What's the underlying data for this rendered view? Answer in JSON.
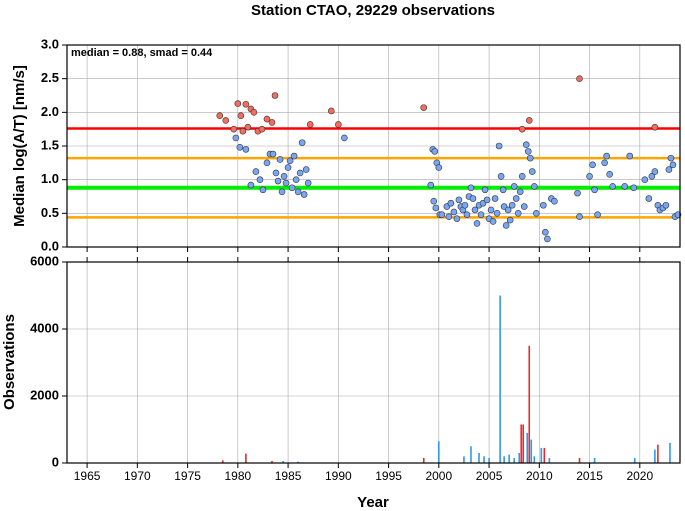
{
  "chart_data": [
    {
      "type": "scatter",
      "title": "Station CTAO, 29229 observations",
      "ylabel": "Median log(A/T) [nm/s]",
      "annotation": "median = 0.88, smad = 0.44",
      "xlim": [
        1963,
        2024
      ],
      "xticks": [
        1965,
        1970,
        1975,
        1980,
        1985,
        1990,
        1995,
        2000,
        2005,
        2010,
        2015,
        2020
      ],
      "ylim": [
        0,
        3
      ],
      "yticks": [
        {
          "value": 0,
          "label": "0.0"
        },
        0.5,
        {
          "value": 1,
          "label": "1.0"
        },
        1.5,
        {
          "value": 2,
          "label": "2.0"
        },
        2.5,
        {
          "value": 3,
          "label": "3.0"
        }
      ],
      "grid": true,
      "hlines": [
        {
          "value": 1.76,
          "color": "#ff0000"
        },
        {
          "value": 1.32,
          "color": "#ffa500"
        },
        {
          "value": 0.88,
          "color": "#00ee00"
        },
        {
          "value": 0.44,
          "color": "#ffa500"
        }
      ],
      "series": [
        {
          "color": "#77a6f5",
          "x": [
            1979.8,
            1980.2,
            1980.8,
            1981.3,
            1981.8,
            1982.2,
            1982.5,
            1982.9,
            1983.2,
            1983.5,
            1983.8,
            1984.0,
            1984.2,
            1984.4,
            1984.6,
            1984.8,
            1985.0,
            1985.2,
            1985.4,
            1985.6,
            1985.8,
            1986.0,
            1986.2,
            1986.4,
            1986.6,
            1986.8,
            1987.0,
            1990.6,
            1999.2,
            1999.4,
            1999.6,
            1999.8,
            2000.0,
            1999.5,
            1999.7,
            2000.1,
            2000.3,
            2000.8,
            2001.0,
            2001.2,
            2001.5,
            2001.8,
            2002.0,
            2002.2,
            2002.4,
            2002.6,
            2002.8,
            2003.0,
            2003.2,
            2003.4,
            2003.6,
            2003.8,
            2004.0,
            2004.2,
            2004.4,
            2004.6,
            2004.8,
            2005.0,
            2005.2,
            2005.4,
            2005.6,
            2005.8,
            2006.0,
            2006.2,
            2006.4,
            2006.5,
            2006.7,
            2006.9,
            2007.1,
            2007.3,
            2007.5,
            2007.7,
            2007.9,
            2008.1,
            2008.3,
            2008.5,
            2008.7,
            2008.9,
            2009.1,
            2009.3,
            2009.5,
            2009.7,
            2010.4,
            2010.6,
            2010.8,
            2011.2,
            2011.5,
            2013.8,
            2014.0,
            2015.0,
            2015.3,
            2015.5,
            2015.8,
            2016.5,
            2016.7,
            2017.0,
            2017.3,
            2018.5,
            2019.0,
            2019.4,
            2020.5,
            2020.9,
            2021.2,
            2021.5,
            2021.8,
            2022.0,
            2022.3,
            2022.6,
            2022.9,
            2023.1,
            2023.3,
            2023.5,
            2023.8
          ],
          "values": [
            1.62,
            1.48,
            1.45,
            0.92,
            1.12,
            1.0,
            0.85,
            1.25,
            1.38,
            1.38,
            1.1,
            0.98,
            1.3,
            0.82,
            1.05,
            0.95,
            1.18,
            1.28,
            0.88,
            1.35,
            1.0,
            0.82,
            1.1,
            1.55,
            0.78,
            1.15,
            0.95,
            1.62,
            0.92,
            1.45,
            1.42,
            1.25,
            1.18,
            0.68,
            0.58,
            0.48,
            0.48,
            0.6,
            0.45,
            0.65,
            0.52,
            0.42,
            0.7,
            0.6,
            0.55,
            0.62,
            0.48,
            0.75,
            0.88,
            0.72,
            0.55,
            0.35,
            0.62,
            0.48,
            0.65,
            0.85,
            0.7,
            0.42,
            0.55,
            0.38,
            0.72,
            0.5,
            1.5,
            1.05,
            0.85,
            0.6,
            0.32,
            0.55,
            0.4,
            0.62,
            0.9,
            0.72,
            0.5,
            0.82,
            1.05,
            0.6,
            1.52,
            1.42,
            1.32,
            1.12,
            0.9,
            0.5,
            0.62,
            0.22,
            0.12,
            0.72,
            0.68,
            0.8,
            0.45,
            1.05,
            1.22,
            0.85,
            0.48,
            1.25,
            1.35,
            1.08,
            0.9,
            0.9,
            1.35,
            0.88,
            1.0,
            0.72,
            1.05,
            1.12,
            0.62,
            0.55,
            0.58,
            0.62,
            1.15,
            1.32,
            1.22,
            0.45,
            0.48
          ]
        },
        {
          "color": "#f56c5e",
          "x": [
            1978.2,
            1978.8,
            1979.6,
            1980.0,
            1980.3,
            1980.5,
            1980.8,
            1981.0,
            1981.3,
            1981.6,
            1982.0,
            1982.4,
            1982.9,
            1983.4,
            1983.7,
            1987.2,
            1989.3,
            1990.0,
            1998.5,
            2008.3,
            2009.0,
            2014.0,
            2021.5
          ],
          "values": [
            1.95,
            1.88,
            1.75,
            2.13,
            1.95,
            1.72,
            2.12,
            1.78,
            2.05,
            2.0,
            1.72,
            1.75,
            1.9,
            1.85,
            2.25,
            1.82,
            2.02,
            1.82,
            2.07,
            1.75,
            1.88,
            2.5,
            1.78
          ]
        }
      ]
    },
    {
      "type": "bar",
      "ylabel": "Observations",
      "xlabel": "Year",
      "xlim": [
        1963,
        2024
      ],
      "xticks": [
        1965,
        1970,
        1975,
        1980,
        1985,
        1990,
        1995,
        2000,
        2005,
        2010,
        2015,
        2020
      ],
      "ylim": [
        0,
        6000
      ],
      "yticks": [
        0,
        2000,
        4000,
        6000
      ],
      "grid": true,
      "series": [
        {
          "color": "#2f9be6",
          "x": [
            1984.5,
            1986.0,
            2000.0,
            2002.5,
            2003.2,
            2004.0,
            2004.5,
            2005.0,
            2006.1,
            2006.5,
            2007.0,
            2007.5,
            2008.0,
            2008.8,
            2009.2,
            2009.5,
            2010.2,
            2011.0,
            2015.5,
            2019.5,
            2021.5,
            2023.0
          ],
          "values": [
            60,
            40,
            650,
            200,
            500,
            300,
            200,
            150,
            5000,
            200,
            250,
            150,
            300,
            900,
            700,
            200,
            450,
            150,
            150,
            150,
            400,
            600
          ]
        },
        {
          "color": "#e52a2a",
          "x": [
            1978.5,
            1980.8,
            1983.4,
            1998.5,
            2008.2,
            2008.4,
            2009.0,
            2010.5,
            2014.0,
            2021.8
          ],
          "values": [
            80,
            280,
            60,
            150,
            1150,
            1150,
            3500,
            450,
            150,
            550
          ]
        }
      ]
    }
  ]
}
